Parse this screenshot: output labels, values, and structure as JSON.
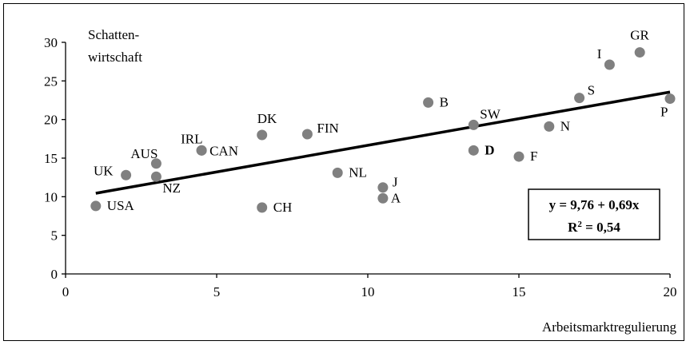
{
  "chart_data": {
    "type": "scatter",
    "ylabel_lines": [
      "Schatten-",
      "wirtschaft"
    ],
    "xlabel": "Arbeitsmarktregulierung",
    "xlim": [
      0,
      20
    ],
    "ylim": [
      0,
      30
    ],
    "x_ticks": [
      0,
      5,
      10,
      15,
      20
    ],
    "y_ticks": [
      0,
      5,
      10,
      15,
      20,
      25,
      30
    ],
    "grid": false,
    "points": [
      {
        "label": "USA",
        "x": 1.0,
        "y": 8.8
      },
      {
        "label": "UK",
        "x": 2.0,
        "y": 12.8
      },
      {
        "label": "AUS",
        "x": 3.0,
        "y": 14.3
      },
      {
        "label": "NZ",
        "x": 3.0,
        "y": 12.6
      },
      {
        "label": "IRL",
        "x": 4.5,
        "y": 16.0
      },
      {
        "label": "CAN",
        "x": 4.5,
        "y": 16.0
      },
      {
        "label": "DK",
        "x": 6.5,
        "y": 18.0
      },
      {
        "label": "CH",
        "x": 6.5,
        "y": 8.6
      },
      {
        "label": "FIN",
        "x": 8.0,
        "y": 18.1
      },
      {
        "label": "NL",
        "x": 9.0,
        "y": 13.1
      },
      {
        "label": "J",
        "x": 10.5,
        "y": 11.2
      },
      {
        "label": "A",
        "x": 10.5,
        "y": 9.8
      },
      {
        "label": "B",
        "x": 12.0,
        "y": 22.2
      },
      {
        "label": "SW",
        "x": 13.5,
        "y": 19.3
      },
      {
        "label": "D",
        "x": 13.5,
        "y": 16.0
      },
      {
        "label": "F",
        "x": 15.0,
        "y": 15.2
      },
      {
        "label": "N",
        "x": 16.0,
        "y": 19.1
      },
      {
        "label": "S",
        "x": 17.0,
        "y": 22.8
      },
      {
        "label": "I",
        "x": 18.0,
        "y": 27.1
      },
      {
        "label": "GR",
        "x": 19.0,
        "y": 28.7
      },
      {
        "label": "P",
        "x": 20.0,
        "y": 22.7
      }
    ],
    "trendline": {
      "intercept": 9.76,
      "slope": 0.69,
      "x_range": [
        1,
        20
      ]
    },
    "equation_text": "y = 9,76 + 0,69x",
    "r2_label": "R",
    "r2_sup": "2",
    "r2_value": " = 0,54",
    "colors": {
      "point": "#808080",
      "line": "#000000"
    }
  }
}
